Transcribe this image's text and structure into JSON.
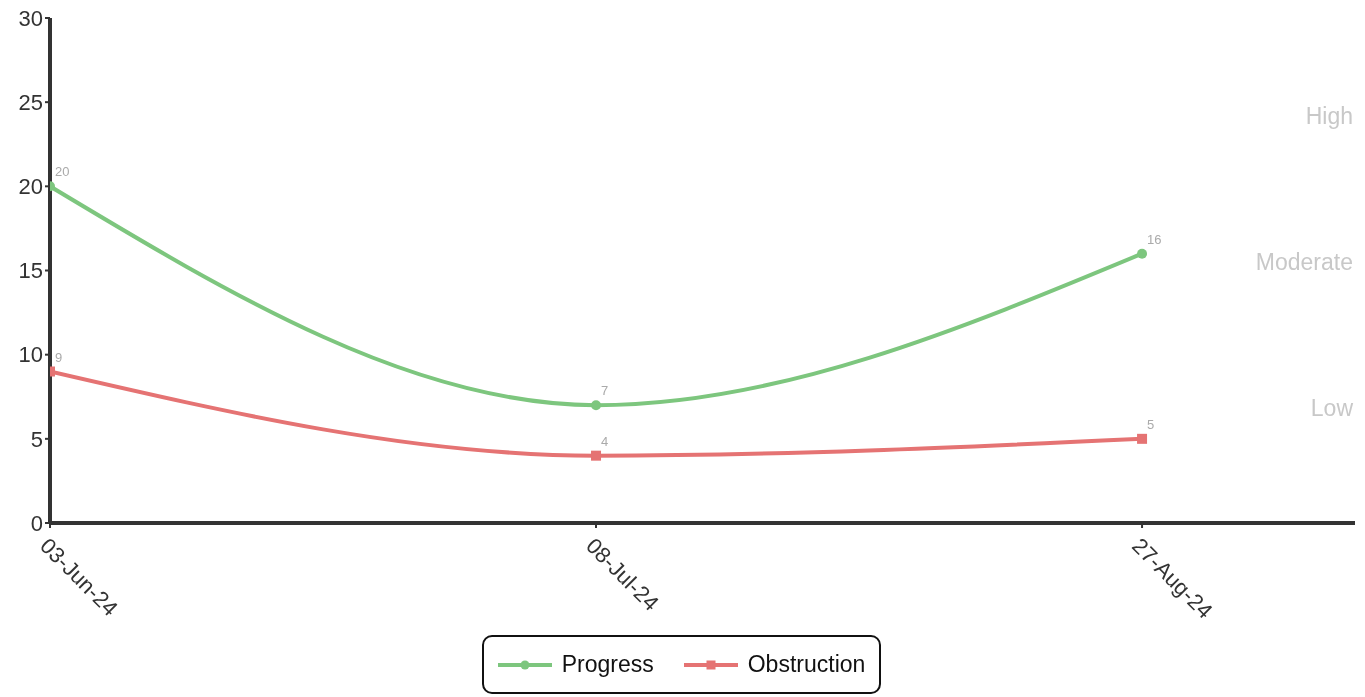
{
  "chart_data": {
    "type": "line",
    "categories": [
      "03-Jun-24",
      "08-Jul-24",
      "27-Aug-24"
    ],
    "series": [
      {
        "name": "Progress",
        "color": "#7dc67e",
        "values": [
          20,
          7,
          16
        ],
        "marker": "circle"
      },
      {
        "name": "Obstruction",
        "color": "#e57373",
        "values": [
          9,
          4,
          5
        ],
        "marker": "square"
      }
    ],
    "ylim": [
      0,
      30
    ],
    "yticks": [
      0,
      5,
      10,
      15,
      20,
      25,
      30
    ],
    "legend": "bottom",
    "data_labels": true,
    "line_style": "solid",
    "annotations": [
      "High",
      "Moderate",
      "Low"
    ]
  }
}
